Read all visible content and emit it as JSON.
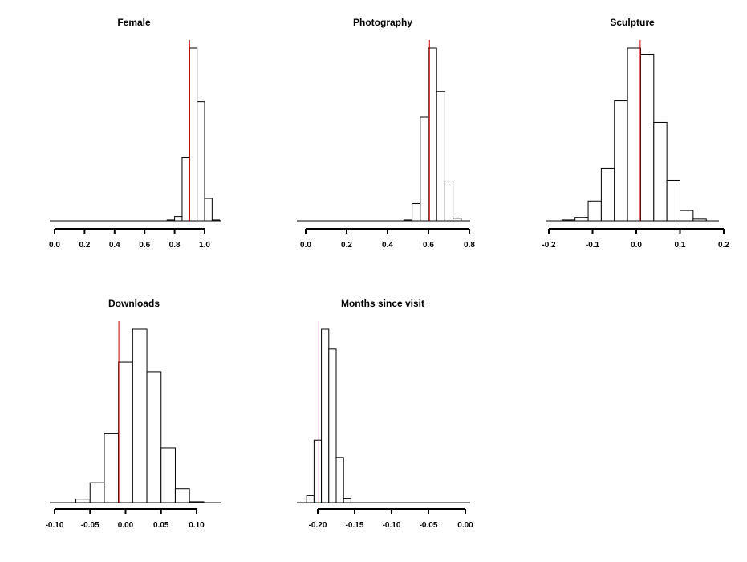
{
  "chart_data": [
    {
      "type": "bar",
      "title": "Female",
      "xlim": [
        0.0,
        1.1
      ],
      "bins": [
        [
          0.75,
          0.8,
          0.5
        ],
        [
          0.8,
          0.85,
          2.5
        ],
        [
          0.85,
          0.9,
          36.5
        ],
        [
          0.9,
          0.95,
          100
        ],
        [
          0.95,
          1.0,
          69
        ],
        [
          1.0,
          1.05,
          13
        ],
        [
          1.05,
          1.1,
          0.5
        ]
      ],
      "xticks": [
        0.0,
        0.2,
        0.4,
        0.6,
        0.8,
        1.0
      ],
      "xtick_labels": [
        "0.0",
        "0.2",
        "0.4",
        "0.6",
        "0.8",
        "1.0"
      ],
      "reference_line": 0.9,
      "line_color": "#cc0000"
    },
    {
      "type": "bar",
      "title": "Photography",
      "xlim": [
        0.0,
        0.8
      ],
      "bins": [
        [
          0.48,
          0.52,
          0.5
        ],
        [
          0.52,
          0.56,
          10
        ],
        [
          0.56,
          0.6,
          60
        ],
        [
          0.6,
          0.64,
          100
        ],
        [
          0.64,
          0.68,
          75
        ],
        [
          0.68,
          0.72,
          23
        ],
        [
          0.72,
          0.76,
          1.5
        ]
      ],
      "xticks": [
        0.0,
        0.2,
        0.4,
        0.6,
        0.8
      ],
      "xtick_labels": [
        "0.0",
        "0.2",
        "0.4",
        "0.6",
        "0.8"
      ],
      "reference_line": 0.605,
      "line_color": "#cc0000"
    },
    {
      "type": "bar",
      "title": "Sculpture",
      "xlim": [
        -0.2,
        0.2
      ],
      "bins": [
        [
          -0.17,
          -0.14,
          0.5
        ],
        [
          -0.14,
          -0.11,
          2
        ],
        [
          -0.11,
          -0.08,
          11.5
        ],
        [
          -0.08,
          -0.05,
          30.5
        ],
        [
          -0.05,
          -0.02,
          69.5
        ],
        [
          -0.02,
          0.01,
          100
        ],
        [
          0.01,
          0.04,
          96.5
        ],
        [
          0.04,
          0.07,
          57
        ],
        [
          0.07,
          0.1,
          23.5
        ],
        [
          0.1,
          0.13,
          6
        ],
        [
          0.13,
          0.16,
          1
        ]
      ],
      "xticks": [
        -0.2,
        -0.1,
        0.0,
        0.1,
        0.2
      ],
      "xtick_labels": [
        "-0.2",
        "-0.1",
        "0.0",
        "0.1",
        "0.2"
      ],
      "reference_line": 0.009,
      "line_color": "#cc0000"
    },
    {
      "type": "bar",
      "title": "Downloads",
      "xlim": [
        -0.1,
        0.12
      ],
      "bins": [
        [
          -0.07,
          -0.05,
          2
        ],
        [
          -0.05,
          -0.03,
          11.5
        ],
        [
          -0.03,
          -0.01,
          40
        ],
        [
          -0.01,
          0.01,
          81
        ],
        [
          0.01,
          0.03,
          100
        ],
        [
          0.03,
          0.05,
          75.5
        ],
        [
          0.05,
          0.07,
          31.5
        ],
        [
          0.07,
          0.09,
          8
        ],
        [
          0.09,
          0.11,
          0.5
        ]
      ],
      "xticks": [
        -0.1,
        -0.05,
        0.0,
        0.05,
        0.1
      ],
      "xtick_labels": [
        "-0.10",
        "-0.05",
        "0.00",
        "0.05",
        "0.10"
      ],
      "reference_line": -0.0095,
      "line_color": "#cc0000"
    },
    {
      "type": "bar",
      "title": "Months since visit",
      "xlim": [
        -0.2,
        0.0
      ],
      "bins": [
        [
          -0.215,
          -0.205,
          4
        ],
        [
          -0.205,
          -0.195,
          36
        ],
        [
          -0.195,
          -0.185,
          100
        ],
        [
          -0.185,
          -0.175,
          88.5
        ],
        [
          -0.175,
          -0.165,
          26
        ],
        [
          -0.165,
          -0.155,
          2.5
        ]
      ],
      "xticks": [
        -0.2,
        -0.15,
        -0.1,
        -0.05,
        0.0
      ],
      "xtick_labels": [
        "-0.20",
        "-0.15",
        "-0.10",
        "-0.05",
        "0.00"
      ],
      "reference_line": -0.1985,
      "line_color": "#cc0000"
    }
  ]
}
